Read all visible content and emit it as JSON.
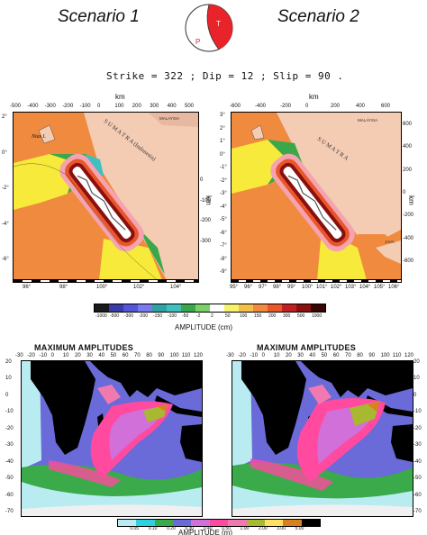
{
  "header": {
    "scenario1": "Scenario  1",
    "scenario2": "Scenario  2",
    "beachball": {
      "t_label": "T",
      "p_label": "P",
      "color": "#e8232a"
    },
    "params": "Strike = 322 ;  Dip = 12 ;  Slip = 90 ."
  },
  "regional": {
    "unit_top": "km",
    "unit_side": "km",
    "left": {
      "top_km": [
        "-500",
        "-400",
        "-300",
        "-200",
        "-100",
        "0",
        "100",
        "200",
        "300",
        "400",
        "500"
      ],
      "lat": [
        "2°",
        "0°",
        "-2°",
        "-4°",
        "-6°"
      ],
      "right_km": [
        "0",
        "-100",
        "-200",
        "-300"
      ],
      "lon": [
        "96°",
        "98°",
        "100°",
        "102°",
        "104°"
      ],
      "labels": {
        "nias": "Nias I.",
        "sumatra": "S U M A T R A  (Indonesia)",
        "malaysia": "MALAYSIA"
      }
    },
    "right": {
      "top_km": [
        "-600",
        "-400",
        "-200",
        "0",
        "200",
        "400",
        "600"
      ],
      "lat": [
        "3°",
        "2°",
        "1°",
        "0°",
        "-1°",
        "-2°",
        "-3°",
        "-4°",
        "-5°",
        "-6°",
        "-7°",
        "-8°",
        "-9°"
      ],
      "right_km": [
        "600",
        "400",
        "200",
        "0",
        "-200",
        "-400",
        "-600"
      ],
      "lon": [
        "95°",
        "96°",
        "97°",
        "98°",
        "99°",
        "100°",
        "101°",
        "102°",
        "103°",
        "104°",
        "105°",
        "106°"
      ],
      "labels": {
        "sumatra": "S U M A T R A",
        "malaysia": "MALAYSIA",
        "java": "JAVA"
      }
    },
    "colorbar": {
      "labels": [
        "-1000",
        "-500",
        "-300",
        "-200",
        "-150",
        "-100",
        "-50",
        "-2",
        "2",
        "50",
        "100",
        "150",
        "200",
        "300",
        "500",
        "1000"
      ],
      "colors": [
        "#1a1a1a",
        "#3b3ba8",
        "#5555d8",
        "#7a7aee",
        "#2fa3a3",
        "#3fbfbf",
        "#3aa84a",
        "#7cd06a",
        "#ffffff",
        "#f7f26a",
        "#f5c04a",
        "#f08a3e",
        "#e8562a",
        "#c02020",
        "#8a1010",
        "#3a0505"
      ],
      "title": "AMPLITUDE (cm)"
    }
  },
  "global": {
    "title_left": "MAXIMUM AMPLITUDES",
    "title_right": "MAXIMUM AMPLITUDES",
    "lon_labels": [
      "-30",
      "-20",
      "-10",
      "0",
      "10",
      "20",
      "30",
      "40",
      "50",
      "60",
      "70",
      "80",
      "90",
      "100",
      "110",
      "120"
    ],
    "lat_labels": [
      "20",
      "10",
      "0",
      "-10",
      "-20",
      "-30",
      "-40",
      "-50",
      "-60",
      "-70"
    ],
    "colorbar": {
      "labels": [
        "0.05",
        "0.10",
        "0.20",
        "0.30",
        "0.40",
        "0.50",
        "1.00",
        "2.00",
        "3.00",
        "5.00"
      ],
      "colors": [
        "#b8ecf0",
        "#2fd0e0",
        "#3aaa4a",
        "#6a6ad8",
        "#d070d8",
        "#ff4aa0",
        "#f07ab0",
        "#a8b830",
        "#ffe060",
        "#d88020",
        "#000000"
      ],
      "title": "AMPLITUDE (m)"
    }
  }
}
